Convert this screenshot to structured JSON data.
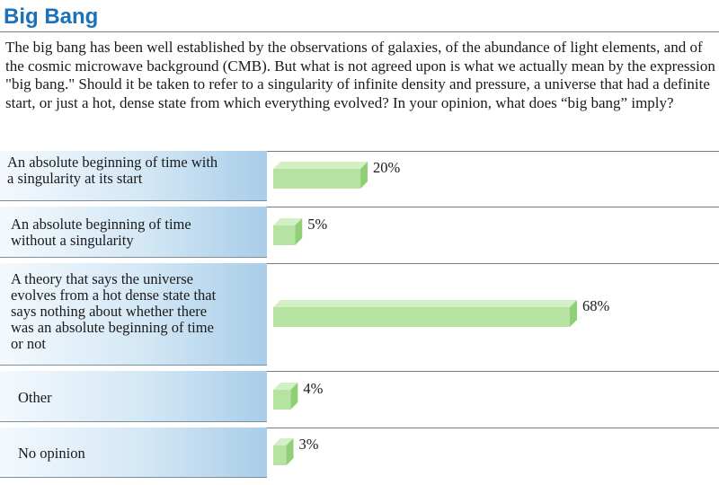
{
  "title": "Big Bang",
  "question": "The big bang has been well established by the observations of galaxies, of the abundance of light elements, and of the cosmic microwave background (CMB). But what is not agreed upon is what we actually mean by the expression \"big bang.\" Should it be taken to refer to a singularity of infinite density and pressure, a universe that had a definite start, or just a hot, dense state from which everything evolved? In your opinion, what does “big bang” imply?",
  "colors": {
    "title": "#1b72b9",
    "bar_front": "#b6e3a1",
    "bar_side": "#8fcf76"
  },
  "chart_data": {
    "type": "bar",
    "orientation": "horizontal",
    "categories": [
      "An absolute beginning of time with\na singularity at its start",
      "An absolute beginning of time\nwithout a singularity",
      "A theory that says the universe\nevolves from a hot dense state that\nsays nothing about whether there\nwas an absolute beginning of time\nor not",
      "Other",
      "No opinion"
    ],
    "values": [
      20,
      5,
      68,
      4,
      3
    ],
    "value_labels": [
      "20%",
      "5%",
      "68%",
      "4%",
      "3%"
    ],
    "unit": "%",
    "xlim": [
      0,
      100
    ]
  }
}
